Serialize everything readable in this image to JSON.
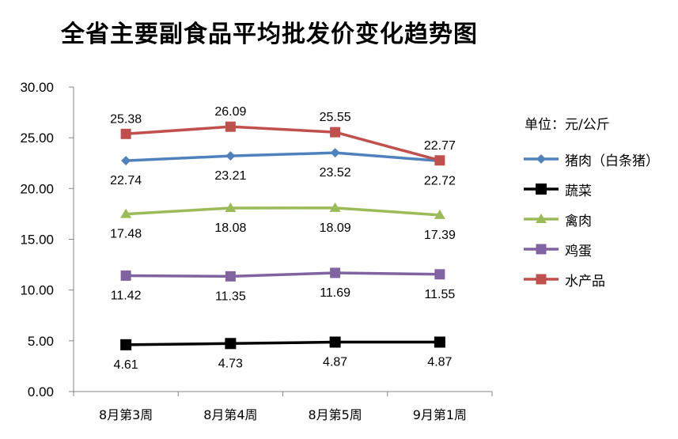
{
  "title": "全省主要副食品平均批发价变化趋势图",
  "unit_label": "单位：元/公斤",
  "chart_data": {
    "type": "line",
    "title": "全省主要副食品平均批发价变化趋势图",
    "categories": [
      "8月第3周",
      "8月第4周",
      "8月第5周",
      "9月第1周"
    ],
    "ylim": [
      0,
      30
    ],
    "yticks": [
      "0.00",
      "5.00",
      "10.00",
      "15.00",
      "20.00",
      "25.00",
      "30.00"
    ],
    "grid": false,
    "legend_position": "right",
    "series": [
      {
        "name": "猪肉（白条猪）",
        "values": [
          22.74,
          23.21,
          23.52,
          22.72
        ],
        "labels": [
          "22.74",
          "23.21",
          "23.52",
          "22.72"
        ],
        "color": "#4f81bd",
        "marker": "diamond",
        "label_pos": "below"
      },
      {
        "name": "蔬菜",
        "values": [
          4.61,
          4.73,
          4.87,
          4.87
        ],
        "labels": [
          "4.61",
          "4.73",
          "4.87",
          "4.87"
        ],
        "color": "#000000",
        "marker": "square",
        "label_pos": "below"
      },
      {
        "name": "禽肉",
        "values": [
          17.48,
          18.08,
          18.09,
          17.39
        ],
        "labels": [
          "17.48",
          "18.08",
          "18.09",
          "17.39"
        ],
        "color": "#9bbb59",
        "marker": "triangle",
        "label_pos": "below"
      },
      {
        "name": "鸡蛋",
        "values": [
          11.42,
          11.35,
          11.69,
          11.55
        ],
        "labels": [
          "11.42",
          "11.35",
          "11.69",
          "11.55"
        ],
        "color": "#8064a2",
        "marker": "square",
        "label_pos": "below"
      },
      {
        "name": "水产品",
        "values": [
          25.38,
          26.09,
          25.55,
          22.77
        ],
        "labels": [
          "25.38",
          "26.09",
          "25.55",
          "22.77"
        ],
        "color": "#c0504d",
        "marker": "square",
        "label_pos": "above"
      }
    ]
  }
}
